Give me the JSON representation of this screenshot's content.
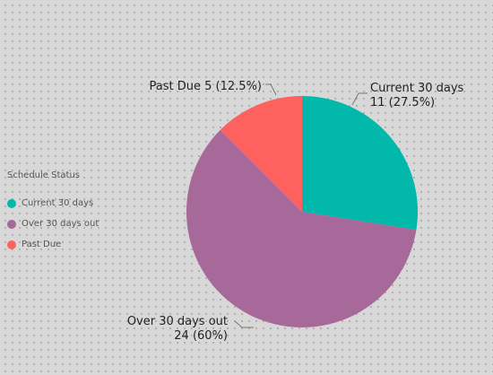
{
  "chart_data": {
    "type": "pie",
    "legend_title": "Schedule Status",
    "legend_position": "left",
    "slices": [
      {
        "name": "Current 30 days",
        "value": 11,
        "percent_label": "11 (27.5%)",
        "color": "#01b8aa"
      },
      {
        "name": "Over 30 days out",
        "value": 24,
        "percent_label": "24 (60%)",
        "color": "#a66999"
      },
      {
        "name": "Past Due",
        "value": 5,
        "percent_label": "5 (12.5%)",
        "color": "#fd625e"
      }
    ],
    "data_labels": {
      "current": {
        "line1": "Current 30 days",
        "line2": "11 (27.5%)"
      },
      "over": {
        "line1": "Over 30 days out",
        "line2": "24 (60%)"
      },
      "past": {
        "text": "Past Due 5 (12.5%)"
      }
    }
  }
}
